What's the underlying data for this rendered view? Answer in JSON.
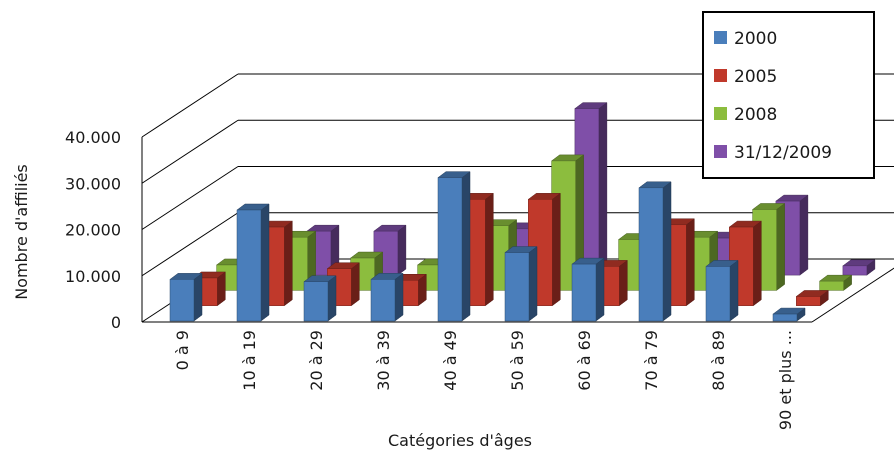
{
  "chart_data": {
    "type": "bar",
    "title": "",
    "xlabel": "Catégories d'âges",
    "ylabel": "Nombre d'affiliés",
    "ylim": [
      0,
      40000
    ],
    "yticks": [
      "0",
      "10.000",
      "20.000",
      "30.000",
      "40.000"
    ],
    "grid": true,
    "legend_position": "top-right",
    "categories": [
      "0 à 9",
      "10 à 19",
      "20 à 29",
      "30 à 39",
      "40 à 49",
      "50 à 59",
      "60 à 69",
      "70 à 79",
      "80 à 89",
      "90 et plus ..."
    ],
    "series": [
      {
        "name": "2000",
        "color": "#4a7ebb",
        "values": [
          9000,
          24000,
          8500,
          9000,
          31000,
          14800,
          12300,
          28800,
          11800,
          1500
        ]
      },
      {
        "name": "2005",
        "color": "#c0392b",
        "values": [
          6000,
          17000,
          8000,
          5500,
          23000,
          23000,
          8500,
          17500,
          17000,
          2000
        ]
      },
      {
        "name": "2008",
        "color": "#8cbd3e",
        "values": [
          5500,
          11500,
          7000,
          5500,
          14000,
          28000,
          11000,
          11500,
          17500,
          2000
        ]
      },
      {
        "name": "31/12/2009",
        "color": "#7f4fa8",
        "values": [
          0,
          9500,
          9500,
          0,
          10000,
          36000,
          8000,
          8000,
          16000,
          2000
        ]
      }
    ]
  }
}
